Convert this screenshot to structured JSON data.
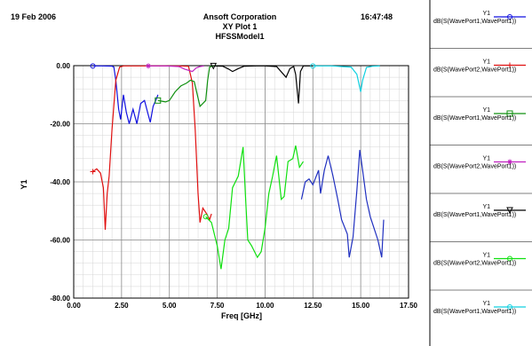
{
  "header": {
    "date": "19 Feb 2006",
    "time": "16:47:48",
    "company": "Ansoft Corporation",
    "plot_name": "XY Plot 1",
    "model": "HFSSModel1"
  },
  "chart_data": {
    "type": "line",
    "xlabel": "Freq [GHz]",
    "ylabel": "Y1",
    "xlim": [
      0,
      17.5
    ],
    "ylim": [
      -80,
      0
    ],
    "xticks": [
      "0.00",
      "2.50",
      "5.00",
      "7.50",
      "10.00",
      "12.50",
      "15.00",
      "17.50"
    ],
    "yticks": [
      "0.00",
      "-20.00",
      "-40.00",
      "-60.00",
      "-80.00"
    ],
    "grid": true,
    "legend_position": "right",
    "series": [
      {
        "name": "dB(S(WavePort1,WavePort1))",
        "legend_y": "Y1",
        "color": "#1010e0",
        "marker": "circle",
        "points": [
          [
            1.0,
            -0.1
          ],
          [
            1.5,
            -0.1
          ],
          [
            2.0,
            -0.15
          ],
          [
            2.1,
            -0.5
          ],
          [
            2.2,
            -5
          ],
          [
            2.35,
            -15
          ],
          [
            2.45,
            -18.5
          ],
          [
            2.6,
            -10
          ],
          [
            2.75,
            -16
          ],
          [
            2.9,
            -20
          ],
          [
            3.1,
            -15
          ],
          [
            3.3,
            -20
          ],
          [
            3.5,
            -13
          ],
          [
            3.7,
            -12
          ],
          [
            3.9,
            -17
          ],
          [
            4.0,
            -19.5
          ],
          [
            4.15,
            -14
          ],
          [
            4.35,
            -11
          ],
          [
            4.4,
            -10
          ]
        ]
      },
      {
        "name": "dB(S(WavePort2,WavePort1))",
        "legend_y": "Y1",
        "color": "#e01010",
        "marker": "plus",
        "points": [
          [
            1.0,
            -36.5
          ],
          [
            1.2,
            -35.5
          ],
          [
            1.4,
            -37
          ],
          [
            1.55,
            -42
          ],
          [
            1.65,
            -56.5
          ],
          [
            1.75,
            -44
          ],
          [
            1.85,
            -38
          ],
          [
            2.0,
            -22
          ],
          [
            2.2,
            -5
          ],
          [
            2.4,
            -0.5
          ],
          [
            2.6,
            -0.1
          ],
          [
            3.5,
            -0.1
          ],
          [
            4.5,
            -0.1
          ],
          [
            5.5,
            -0.1
          ],
          [
            6.0,
            -0.2
          ]
        ]
      },
      {
        "name": "dB(S(WavePort1,WavePort1))",
        "legend_y": "Y1",
        "color": "#109010",
        "marker": "square",
        "points": [
          [
            4.4,
            -12
          ],
          [
            4.8,
            -12.5
          ],
          [
            5.0,
            -12
          ],
          [
            5.3,
            -9
          ],
          [
            5.6,
            -7
          ],
          [
            5.9,
            -6
          ],
          [
            6.1,
            -5
          ],
          [
            6.3,
            -5.5
          ],
          [
            6.6,
            -14
          ],
          [
            6.9,
            -12
          ],
          [
            7.0,
            -5
          ],
          [
            7.1,
            -0.5
          ],
          [
            7.3,
            -0.1
          ],
          [
            7.5,
            -0.1
          ]
        ]
      },
      {
        "name": "dB(S(WavePort2,WavePort1))",
        "legend_y": "Y1",
        "color": "#c020c0",
        "marker": "asterisk",
        "points": [
          [
            3.9,
            -0.1
          ],
          [
            4.8,
            -0.1
          ],
          [
            5.5,
            -0.3
          ],
          [
            5.8,
            -1.2
          ],
          [
            6.2,
            -2.0
          ],
          [
            6.4,
            -0.8
          ],
          [
            6.6,
            -0.3
          ],
          [
            6.8,
            -0.1
          ]
        ]
      },
      {
        "name": "dB(S(WavePort1,WavePort1))",
        "legend_y": "Y1",
        "color": "#000000",
        "marker": "triangle",
        "points": [
          [
            7.3,
            -0.1
          ],
          [
            7.8,
            -0.2
          ],
          [
            8.1,
            -1.2
          ],
          [
            8.3,
            -2.0
          ],
          [
            8.6,
            -1.0
          ],
          [
            8.9,
            -0.2
          ],
          [
            9.5,
            -0.1
          ],
          [
            10.0,
            -0.1
          ],
          [
            10.6,
            -0.3
          ],
          [
            10.9,
            -2.5
          ],
          [
            11.1,
            -4.0
          ],
          [
            11.3,
            -1
          ],
          [
            11.5,
            -0.3
          ],
          [
            11.6,
            -3
          ],
          [
            11.75,
            -13
          ],
          [
            11.85,
            -2
          ],
          [
            12.0,
            -0.1
          ],
          [
            12.5,
            -0.1
          ]
        ]
      },
      {
        "name": "dB(S(WavePort2,WavePort1))",
        "legend_y": "Y1",
        "color": "#10e010",
        "marker": "circle",
        "points": [
          [
            6.9,
            -52
          ],
          [
            7.2,
            -54
          ],
          [
            7.5,
            -62
          ],
          [
            7.7,
            -70
          ],
          [
            7.9,
            -60
          ],
          [
            8.1,
            -56
          ],
          [
            8.3,
            -42
          ],
          [
            8.6,
            -38
          ],
          [
            8.85,
            -28
          ],
          [
            9.0,
            -48
          ],
          [
            9.1,
            -60
          ],
          [
            9.3,
            -62
          ],
          [
            9.6,
            -66
          ],
          [
            9.8,
            -64
          ],
          [
            10.0,
            -56
          ],
          [
            10.2,
            -44
          ],
          [
            10.4,
            -38
          ],
          [
            10.6,
            -31
          ],
          [
            10.85,
            -46
          ],
          [
            11.0,
            -45
          ],
          [
            11.2,
            -33
          ],
          [
            11.45,
            -32
          ],
          [
            11.6,
            -27.5
          ],
          [
            11.8,
            -35
          ],
          [
            12.0,
            -33
          ]
        ]
      },
      {
        "name": "dB(S(WavePort1,WavePort1))",
        "legend_y": "Y1",
        "color": "#10d0e0",
        "marker": "circle",
        "points": [
          [
            12.5,
            -0.1
          ],
          [
            13.5,
            -0.1
          ],
          [
            14.0,
            -0.3
          ],
          [
            14.5,
            -0.5
          ],
          [
            14.8,
            -3
          ],
          [
            15.0,
            -9
          ],
          [
            15.1,
            -5
          ],
          [
            15.3,
            -0.6
          ],
          [
            15.6,
            -0.2
          ],
          [
            16.0,
            -0.1
          ]
        ]
      }
    ],
    "extra_traces": [
      {
        "color": "#2030c0",
        "points": [
          [
            11.9,
            -46
          ],
          [
            12.1,
            -40
          ],
          [
            12.3,
            -39
          ],
          [
            12.5,
            -41
          ],
          [
            12.8,
            -36
          ],
          [
            12.9,
            -44
          ],
          [
            13.1,
            -36
          ],
          [
            13.3,
            -31
          ],
          [
            13.55,
            -38
          ],
          [
            13.8,
            -46
          ],
          [
            14.0,
            -53
          ],
          [
            14.3,
            -58
          ],
          [
            14.4,
            -66
          ],
          [
            14.6,
            -59
          ],
          [
            14.8,
            -43
          ],
          [
            14.95,
            -29
          ],
          [
            15.1,
            -36
          ],
          [
            15.3,
            -46
          ],
          [
            15.5,
            -52
          ],
          [
            15.7,
            -56
          ],
          [
            15.9,
            -60
          ],
          [
            16.1,
            -66
          ],
          [
            16.2,
            -53
          ]
        ]
      },
      {
        "color": "#e01010",
        "points": [
          [
            6.0,
            -0.2
          ],
          [
            6.2,
            -6
          ],
          [
            6.35,
            -22
          ],
          [
            6.5,
            -44
          ],
          [
            6.6,
            -54
          ],
          [
            6.75,
            -49
          ],
          [
            6.95,
            -51
          ],
          [
            7.1,
            -53
          ],
          [
            7.2,
            -51
          ]
        ]
      }
    ]
  }
}
